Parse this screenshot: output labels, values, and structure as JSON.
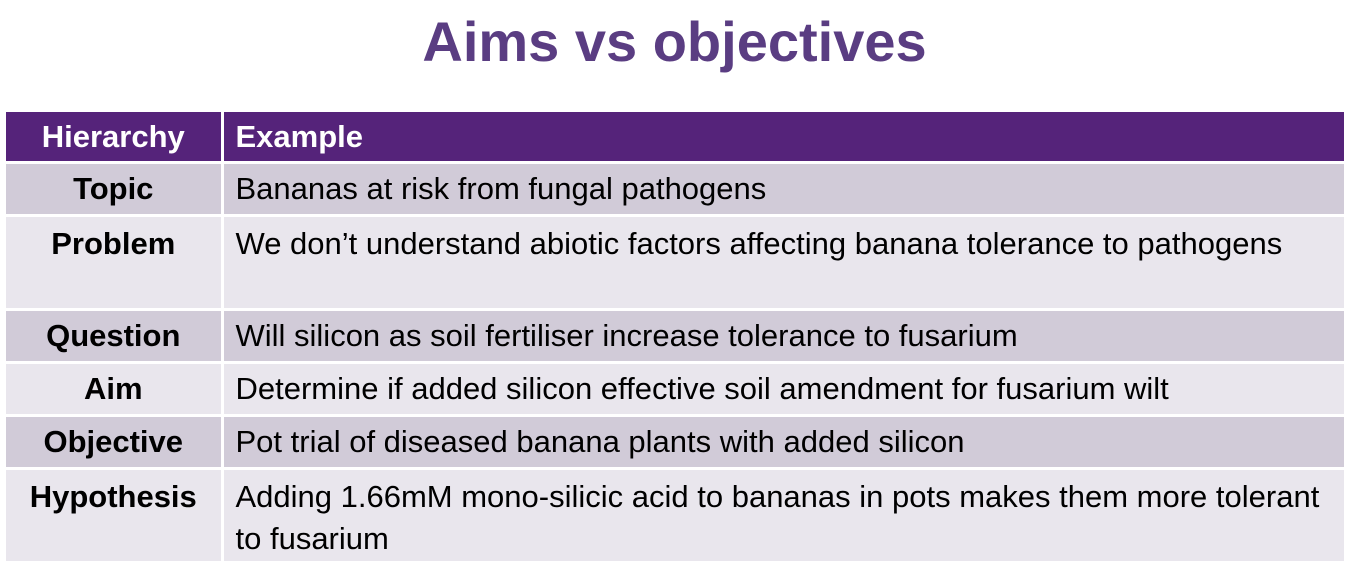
{
  "title": "Aims vs objectives",
  "table": {
    "headers": [
      "Hierarchy",
      "Example"
    ],
    "rows": [
      {
        "level": "Topic",
        "example": "Bananas at risk from fungal pathogens"
      },
      {
        "level": "Problem",
        "example": "We don’t understand abiotic factors affecting banana tolerance to pathogens"
      },
      {
        "level": "Question",
        "example": "Will silicon as soil fertiliser increase tolerance to fusarium"
      },
      {
        "level": "Aim",
        "example": "Determine if added silicon effective soil amendment for fusarium wilt"
      },
      {
        "level": "Objective",
        "example": "Pot trial of diseased banana plants with added silicon"
      },
      {
        "level": "Hypothesis",
        "example": "Adding 1.66mM mono-silicic acid to bananas in pots makes them more tolerant to fusarium"
      }
    ]
  },
  "colors": {
    "title": "#5a3d82",
    "header_bg": "#55237a",
    "row_dark": "#d1cbd8",
    "row_light": "#e9e6ed"
  }
}
